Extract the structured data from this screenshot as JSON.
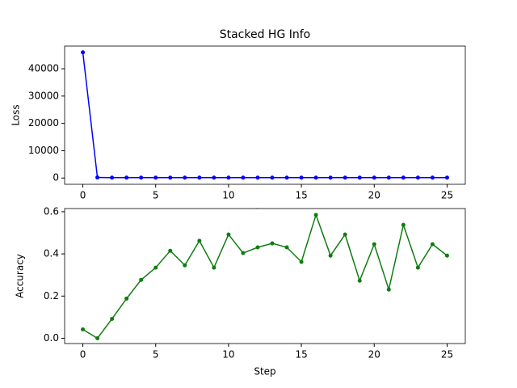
{
  "chart_data": [
    {
      "type": "line",
      "title": "Stacked HG Info",
      "xlabel": "Step",
      "ylabel": "Loss",
      "x": [
        0,
        1,
        2,
        3,
        4,
        5,
        6,
        7,
        8,
        9,
        10,
        11,
        12,
        13,
        14,
        15,
        16,
        17,
        18,
        19,
        20,
        21,
        22,
        23,
        24,
        25
      ],
      "series": [
        {
          "color": "#0000ff",
          "values": [
            46000,
            200,
            150,
            150,
            150,
            150,
            150,
            150,
            150,
            150,
            150,
            150,
            150,
            150,
            150,
            150,
            150,
            150,
            150,
            150,
            150,
            150,
            150,
            150,
            150,
            150
          ]
        }
      ],
      "xlim": [
        -1.25,
        26.25
      ],
      "xticks": [
        0,
        5,
        10,
        15,
        20,
        25
      ],
      "ylim": [
        -2300,
        48300
      ],
      "yticks": [
        0,
        10000,
        20000,
        30000,
        40000
      ]
    },
    {
      "type": "line",
      "xlabel": "Step",
      "ylabel": "Accuracy",
      "x": [
        0,
        1,
        2,
        3,
        4,
        5,
        6,
        7,
        8,
        9,
        10,
        11,
        12,
        13,
        14,
        15,
        16,
        17,
        18,
        19,
        20,
        21,
        22,
        23,
        24,
        25
      ],
      "series": [
        {
          "color": "#107c10",
          "values": [
            0.042,
            0,
            0.092,
            0.188,
            0.277,
            0.335,
            0.415,
            0.346,
            0.462,
            0.335,
            0.492,
            0.404,
            0.431,
            0.45,
            0.431,
            0.362,
            0.585,
            0.392,
            0.492,
            0.273,
            0.446,
            0.231,
            0.538,
            0.335,
            0.446,
            0.392
          ]
        }
      ],
      "xlim": [
        -1.25,
        26.25
      ],
      "xticks": [
        0,
        5,
        10,
        15,
        20,
        25
      ],
      "ylim": [
        -0.025,
        0.615
      ],
      "yticks": [
        {
          "value": 0,
          "label": "0.0"
        },
        0.2,
        0.4,
        0.6
      ]
    }
  ]
}
